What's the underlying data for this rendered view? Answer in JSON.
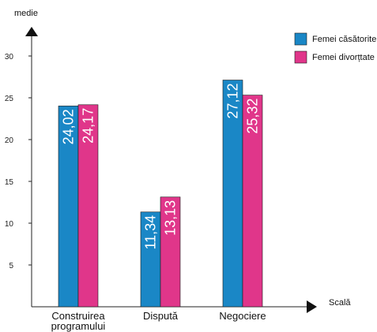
{
  "chart_data": {
    "type": "bar",
    "ylabel": "medie",
    "xlabel": "Scală",
    "ylim": [
      0,
      33
    ],
    "yticks": [
      5,
      10,
      15,
      20,
      25,
      30
    ],
    "grid": false,
    "legend_position": "top-right",
    "categories": [
      {
        "lines": [
          "Construirea",
          "programului"
        ]
      },
      {
        "lines": [
          "Dispută"
        ]
      },
      {
        "lines": [
          "Negociere"
        ]
      }
    ],
    "series": [
      {
        "name": "Femei căsătorite",
        "color": "#1a87c6",
        "values": [
          24.02,
          11.34,
          27.12
        ],
        "labels": [
          "24,02",
          "11,34",
          "27,12"
        ]
      },
      {
        "name": "Femei divorțtate",
        "color": "#e0368a",
        "values": [
          24.17,
          13.13,
          25.32
        ],
        "labels": [
          "24,17",
          "13,13",
          "25,32"
        ]
      }
    ]
  }
}
